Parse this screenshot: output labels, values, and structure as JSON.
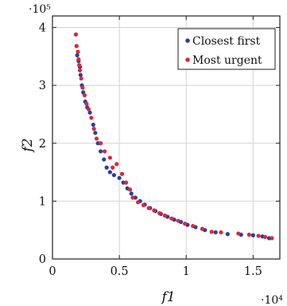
{
  "chart_data": {
    "type": "scatter",
    "xlabel": "f1",
    "ylabel": "f2",
    "x_exponent_label": "·10⁴",
    "y_exponent_label": "·10⁵",
    "xlim": [
      0,
      17000
    ],
    "ylim": [
      0,
      420000
    ],
    "x_ticks": [
      {
        "value": 0,
        "label": "0"
      },
      {
        "value": 5000,
        "label": "0.5"
      },
      {
        "value": 10000,
        "label": "1"
      },
      {
        "value": 15000,
        "label": "1.5"
      }
    ],
    "y_ticks": [
      {
        "value": 0,
        "label": "0"
      },
      {
        "value": 100000,
        "label": "1"
      },
      {
        "value": 200000,
        "label": "2"
      },
      {
        "value": 300000,
        "label": "3"
      },
      {
        "value": 400000,
        "label": "4"
      }
    ],
    "grid": true,
    "legend_position": "top-right",
    "series": [
      {
        "name": "Closest first",
        "color": "#2a3f9e",
        "points": [
          [
            1850,
            352000
          ],
          [
            1950,
            342000
          ],
          [
            2050,
            332000
          ],
          [
            2100,
            318000
          ],
          [
            2200,
            300000
          ],
          [
            2300,
            288000
          ],
          [
            2450,
            272000
          ],
          [
            2600,
            262000
          ],
          [
            2800,
            253000
          ],
          [
            3050,
            232000
          ],
          [
            3200,
            218000
          ],
          [
            3400,
            200000
          ],
          [
            3600,
            186000
          ],
          [
            3850,
            172000
          ],
          [
            4050,
            158000
          ],
          [
            4300,
            150000
          ],
          [
            4600,
            145000
          ],
          [
            5000,
            140000
          ],
          [
            5300,
            132000
          ],
          [
            5600,
            122000
          ],
          [
            5900,
            113000
          ],
          [
            6200,
            106000
          ],
          [
            6550,
            100000
          ],
          [
            6900,
            94000
          ],
          [
            7300,
            88000
          ],
          [
            7700,
            83000
          ],
          [
            8100,
            78000
          ],
          [
            8600,
            73000
          ],
          [
            9100,
            68000
          ],
          [
            9600,
            64000
          ],
          [
            10100,
            59000
          ],
          [
            10700,
            55000
          ],
          [
            11400,
            50000
          ],
          [
            12200,
            46000
          ],
          [
            13100,
            43000
          ],
          [
            14100,
            42000
          ],
          [
            15000,
            41000
          ],
          [
            15700,
            39000
          ],
          [
            16200,
            36000
          ]
        ]
      },
      {
        "name": "Most urgent",
        "color": "#d8283a",
        "points": [
          [
            1750,
            388000
          ],
          [
            1800,
            368000
          ],
          [
            1900,
            358000
          ],
          [
            1950,
            345000
          ],
          [
            2000,
            335000
          ],
          [
            2050,
            326000
          ],
          [
            2150,
            312000
          ],
          [
            2250,
            296000
          ],
          [
            2400,
            283000
          ],
          [
            2550,
            268000
          ],
          [
            2700,
            259000
          ],
          [
            2900,
            244000
          ],
          [
            3100,
            225000
          ],
          [
            3300,
            208000
          ],
          [
            3600,
            200000
          ],
          [
            3900,
            186000
          ],
          [
            4300,
            175000
          ],
          [
            4500,
            158000
          ],
          [
            4800,
            164000
          ],
          [
            5200,
            147000
          ],
          [
            5500,
            132000
          ],
          [
            5800,
            120000
          ],
          [
            6000,
            106000
          ],
          [
            6400,
            98000
          ],
          [
            6800,
            93000
          ],
          [
            7200,
            88000
          ],
          [
            7600,
            84000
          ],
          [
            8000,
            79000
          ],
          [
            8400,
            75000
          ],
          [
            8900,
            70000
          ],
          [
            9400,
            66000
          ],
          [
            9900,
            61000
          ],
          [
            10500,
            57000
          ],
          [
            11200,
            52000
          ],
          [
            11900,
            47000
          ],
          [
            12600,
            46000
          ],
          [
            13900,
            44000
          ],
          [
            14700,
            42000
          ],
          [
            15400,
            40000
          ],
          [
            15900,
            38000
          ],
          [
            16400,
            36000
          ]
        ]
      }
    ]
  }
}
